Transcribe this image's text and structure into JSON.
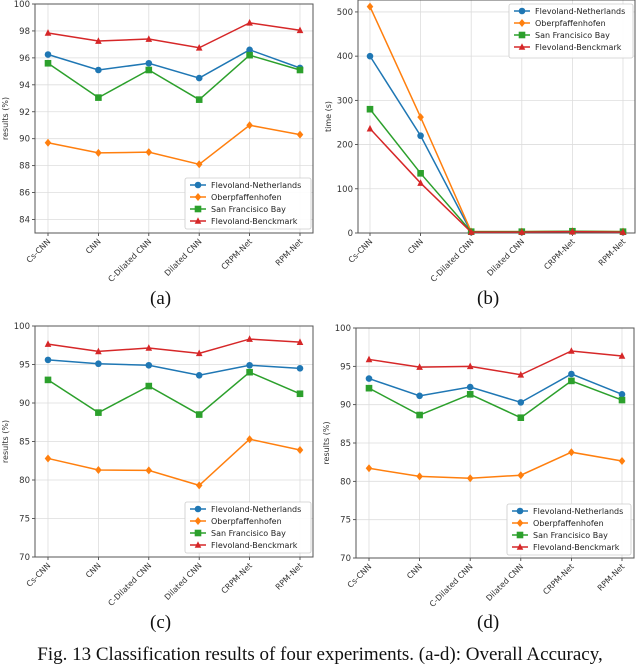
{
  "chart_data": [
    {
      "panel": "(a)",
      "type": "line",
      "ylabel": "results (%)",
      "ylim": [
        83,
        100
      ],
      "yticks": [
        84,
        86,
        88,
        90,
        92,
        94,
        96,
        98,
        100
      ],
      "grid": true,
      "legend": "bottom-right",
      "categories": [
        "Cs-CNN",
        "CNN",
        "C-Dilated CNN",
        "Dilated CNN",
        "CRPM-Net",
        "RPM-Net"
      ],
      "series": [
        {
          "name": "Flevoland-Netherlands",
          "color": "#1f77b4",
          "marker": "circle",
          "values": [
            96.25,
            95.1,
            95.6,
            94.5,
            96.6,
            95.25
          ]
        },
        {
          "name": "Oberpfaffenhofen",
          "color": "#ff7f0e",
          "marker": "diamond",
          "values": [
            89.7,
            88.95,
            89.0,
            88.1,
            91.0,
            90.3
          ]
        },
        {
          "name": "San Francisico Bay",
          "color": "#2ca02c",
          "marker": "square",
          "values": [
            95.6,
            93.05,
            95.1,
            92.9,
            96.2,
            95.1
          ]
        },
        {
          "name": "Flevoland-Benckmark",
          "color": "#d62728",
          "marker": "triangle",
          "values": [
            97.85,
            97.25,
            97.4,
            96.75,
            98.6,
            98.05
          ]
        }
      ]
    },
    {
      "panel": "(b)",
      "type": "line",
      "ylabel": "time (s)",
      "ylim": [
        0,
        527
      ],
      "yticks": [
        0,
        100,
        200,
        300,
        400,
        500
      ],
      "grid": true,
      "legend": "top-right",
      "categories": [
        "Cs-CNN",
        "CNN",
        "C-Dilated CNN",
        "Dilated CNN",
        "CRPM-Net",
        "RPM-Net"
      ],
      "series": [
        {
          "name": "Flevoland-Netherlands",
          "color": "#1f77b4",
          "marker": "circle",
          "values": [
            400,
            220,
            2,
            2,
            3,
            2
          ]
        },
        {
          "name": "Oberpfaffenhofen",
          "color": "#ff7f0e",
          "marker": "diamond",
          "values": [
            512,
            262,
            3,
            3,
            4,
            3
          ]
        },
        {
          "name": "San Francisico Bay",
          "color": "#2ca02c",
          "marker": "square",
          "values": [
            280,
            135,
            3,
            3,
            4,
            3
          ]
        },
        {
          "name": "Flevoland-Benckmark",
          "color": "#d62728",
          "marker": "triangle",
          "values": [
            236,
            113,
            2,
            2,
            3,
            2
          ]
        }
      ]
    },
    {
      "panel": "(c)",
      "type": "line",
      "ylabel": "results (%)",
      "ylim": [
        70,
        100
      ],
      "yticks": [
        70,
        75,
        80,
        85,
        90,
        95,
        100
      ],
      "grid": true,
      "legend": "bottom-right",
      "categories": [
        "Cs-CNN",
        "CNN",
        "C-Dilated CNN",
        "Dilated CNN",
        "CRPM-Net",
        "RPM-Net"
      ],
      "series": [
        {
          "name": "Flevoland-Netherlands",
          "color": "#1f77b4",
          "marker": "circle",
          "values": [
            95.6,
            95.1,
            94.9,
            93.6,
            94.9,
            94.5
          ]
        },
        {
          "name": "Oberpfaffenhofen",
          "color": "#ff7f0e",
          "marker": "diamond",
          "values": [
            82.8,
            81.3,
            81.25,
            79.3,
            85.3,
            83.9
          ]
        },
        {
          "name": "San Francisico Bay",
          "color": "#2ca02c",
          "marker": "square",
          "values": [
            93.0,
            88.75,
            92.2,
            88.5,
            94.0,
            91.2
          ]
        },
        {
          "name": "Flevoland-Benckmark",
          "color": "#d62728",
          "marker": "triangle",
          "values": [
            97.65,
            96.7,
            97.15,
            96.45,
            98.3,
            97.9
          ]
        }
      ]
    },
    {
      "panel": "(d)",
      "type": "line",
      "ylabel": "results (%)",
      "ylim": [
        70,
        100
      ],
      "yticks": [
        70,
        75,
        80,
        85,
        90,
        95,
        100
      ],
      "grid": true,
      "legend": "bottom-right",
      "categories": [
        "Cs-CNN",
        "CNN",
        "C-Dilated CNN",
        "Dilated CNN",
        "CRPM-Net",
        "RPM-Net"
      ],
      "series": [
        {
          "name": "Flevoland-Netherlands",
          "color": "#1f77b4",
          "marker": "circle",
          "values": [
            93.4,
            91.15,
            92.3,
            90.3,
            94.0,
            91.35
          ]
        },
        {
          "name": "Oberpfaffenhofen",
          "color": "#ff7f0e",
          "marker": "diamond",
          "values": [
            81.7,
            80.65,
            80.4,
            80.8,
            83.8,
            82.65
          ]
        },
        {
          "name": "San Francisico Bay",
          "color": "#2ca02c",
          "marker": "square",
          "values": [
            92.15,
            88.65,
            91.35,
            88.3,
            93.1,
            90.6
          ]
        },
        {
          "name": "Flevoland-Benckmark",
          "color": "#d62728",
          "marker": "triangle",
          "values": [
            95.9,
            94.9,
            95.0,
            93.9,
            97.0,
            96.35
          ]
        }
      ]
    }
  ],
  "caption": "Fig. 13 Classification results of four experiments. (a-d): Overall Accuracy,"
}
